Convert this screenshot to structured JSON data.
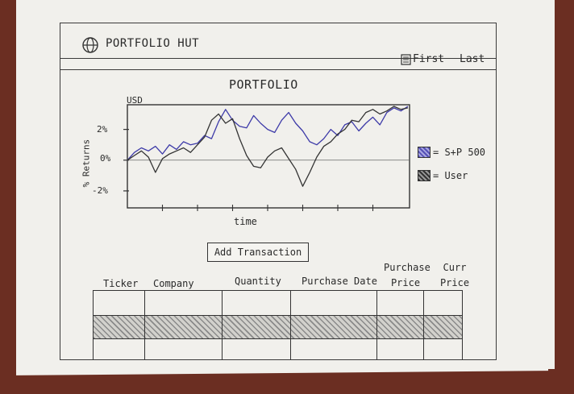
{
  "header": {
    "app_title": "PORTFOLIO HUT",
    "logo_icon": "globe-icon",
    "nav": {
      "first": "First",
      "last": "Last",
      "first_icon": "document-icon"
    }
  },
  "chart_data": {
    "type": "line",
    "title": "PORTFOLIO",
    "unit": "USD",
    "xlabel": "time",
    "ylabel": "% Returns",
    "yticks": [
      "2%",
      "0%",
      "-2%"
    ],
    "ylim": [
      -3,
      3.5
    ],
    "x": [
      0,
      1,
      2,
      3,
      4,
      5,
      6,
      7,
      8,
      9,
      10,
      11,
      12,
      13,
      14,
      15,
      16,
      17,
      18,
      19,
      20,
      21,
      22,
      23,
      24,
      25,
      26,
      27,
      28,
      29,
      30,
      31,
      32,
      33,
      34,
      35,
      36,
      37,
      38,
      39,
      40
    ],
    "series": [
      {
        "name": "S+P 500",
        "color": "#3d3aa8",
        "values": [
          0,
          0.5,
          0.8,
          0.6,
          0.9,
          0.4,
          1.0,
          0.7,
          1.2,
          1.0,
          1.1,
          1.6,
          1.4,
          2.5,
          3.3,
          2.6,
          2.2,
          2.1,
          2.9,
          2.4,
          2.0,
          1.8,
          2.6,
          3.1,
          2.4,
          1.9,
          1.2,
          1.0,
          1.4,
          2.0,
          1.6,
          2.3,
          2.5,
          1.9,
          2.4,
          2.8,
          2.3,
          3.1,
          3.4,
          3.2,
          3.5
        ]
      },
      {
        "name": "User",
        "color": "#333333",
        "values": [
          0,
          0.3,
          0.6,
          0.2,
          -0.8,
          0.1,
          0.4,
          0.6,
          0.8,
          0.5,
          1.0,
          1.5,
          2.6,
          3.0,
          2.4,
          2.7,
          1.4,
          0.3,
          -0.4,
          -0.5,
          0.2,
          0.6,
          0.8,
          0.1,
          -0.6,
          -1.7,
          -0.8,
          0.2,
          0.9,
          1.2,
          1.7,
          2.0,
          2.6,
          2.5,
          3.1,
          3.3,
          3.0,
          3.2,
          3.5,
          3.3,
          3.4
        ]
      }
    ],
    "grid": false,
    "legend_position": "right"
  },
  "legend": {
    "sp_label": "= S+P 500",
    "user_label": "= User"
  },
  "actions": {
    "add_transaction": "Add Transaction"
  },
  "table": {
    "columns": [
      {
        "label": "Ticker"
      },
      {
        "label": "Company"
      },
      {
        "label": "Quantity"
      },
      {
        "label": "Purchase Date"
      },
      {
        "label": "Purchase Price"
      },
      {
        "label": "Curr Price"
      }
    ]
  }
}
